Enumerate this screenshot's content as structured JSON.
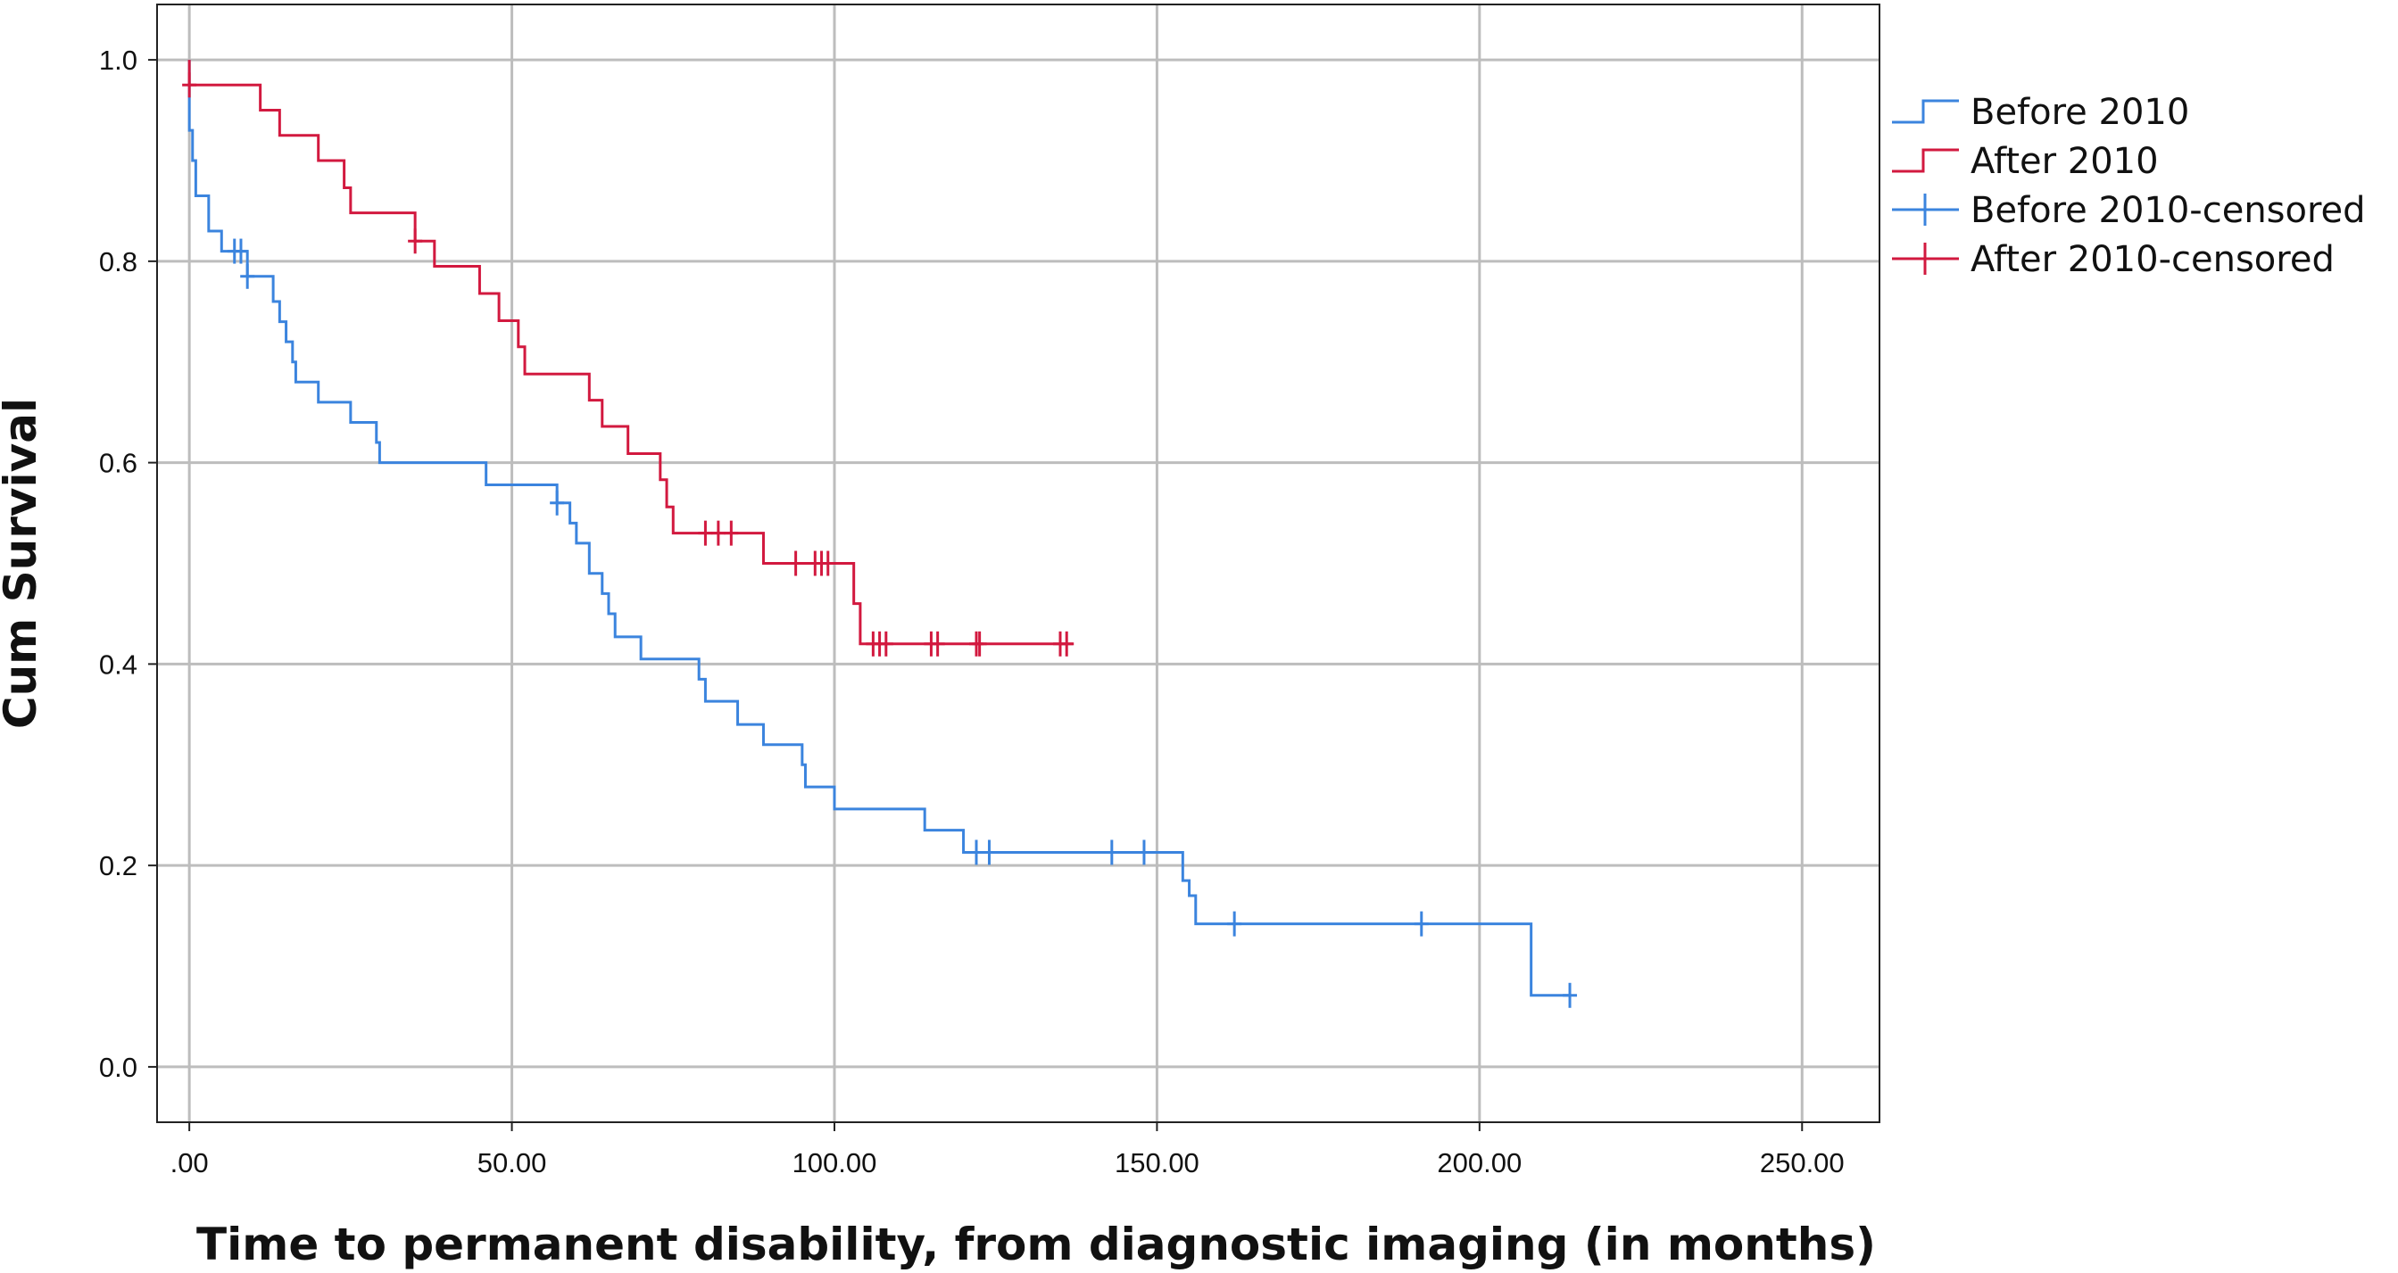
{
  "chart_data": {
    "type": "line",
    "subtype": "kaplan-meier step",
    "xlabel": "Time to permanent disability, from diagnostic imaging (in months)",
    "ylabel": "Cum Survival",
    "xlim": [
      -5,
      262
    ],
    "ylim": [
      -0.055,
      1.055
    ],
    "x_ticks": [
      0,
      50,
      100,
      150,
      200,
      250
    ],
    "x_tick_labels": [
      ".00",
      "50.00",
      "100.00",
      "150.00",
      "200.00",
      "250.00"
    ],
    "y_ticks": [
      0.0,
      0.2,
      0.4,
      0.6,
      0.8,
      1.0
    ],
    "y_tick_labels": [
      "0.0",
      "0.2",
      "0.4",
      "0.6",
      "0.8",
      "1.0"
    ],
    "grid": true,
    "legend_position": "top-right, outside plot",
    "legend": [
      "Before 2010",
      "After 2010",
      "Before 2010-censored",
      "After 2010-censored"
    ],
    "series": [
      {
        "name": "Before 2010",
        "color": "#3b84de",
        "steps": [
          [
            0,
            1.0
          ],
          [
            0,
            0.93
          ],
          [
            0.5,
            0.9
          ],
          [
            1,
            0.865
          ],
          [
            3,
            0.83
          ],
          [
            5,
            0.81
          ],
          [
            9,
            0.785
          ],
          [
            13,
            0.76
          ],
          [
            14,
            0.74
          ],
          [
            15,
            0.72
          ],
          [
            16,
            0.7
          ],
          [
            16.5,
            0.68
          ],
          [
            20,
            0.66
          ],
          [
            25,
            0.64
          ],
          [
            29,
            0.62
          ],
          [
            29.5,
            0.6
          ],
          [
            46,
            0.578
          ],
          [
            57,
            0.56
          ],
          [
            59,
            0.54
          ],
          [
            60,
            0.52
          ],
          [
            62,
            0.49
          ],
          [
            64,
            0.47
          ],
          [
            65,
            0.45
          ],
          [
            66,
            0.427
          ],
          [
            70,
            0.405
          ],
          [
            79,
            0.385
          ],
          [
            80,
            0.363
          ],
          [
            85,
            0.34
          ],
          [
            89,
            0.32
          ],
          [
            95,
            0.3
          ],
          [
            95.5,
            0.278
          ],
          [
            100,
            0.256
          ],
          [
            114,
            0.235
          ],
          [
            120,
            0.213
          ],
          [
            154,
            0.185
          ],
          [
            155,
            0.17
          ],
          [
            156,
            0.142
          ],
          [
            208,
            0.071
          ]
        ],
        "end_x": 214,
        "censored_x": [
          7,
          8,
          9,
          57,
          122,
          124,
          143,
          148,
          162,
          191,
          214
        ]
      },
      {
        "name": "After 2010",
        "color": "#d2193f",
        "steps": [
          [
            0,
            1.0
          ],
          [
            0,
            0.975
          ],
          [
            11,
            0.95
          ],
          [
            14,
            0.925
          ],
          [
            20,
            0.9
          ],
          [
            24,
            0.873
          ],
          [
            25,
            0.848
          ],
          [
            35,
            0.82
          ],
          [
            38,
            0.795
          ],
          [
            45,
            0.768
          ],
          [
            48,
            0.741
          ],
          [
            51,
            0.715
          ],
          [
            52,
            0.688
          ],
          [
            62,
            0.662
          ],
          [
            64,
            0.636
          ],
          [
            68,
            0.609
          ],
          [
            73,
            0.583
          ],
          [
            74,
            0.556
          ],
          [
            75,
            0.53
          ],
          [
            89,
            0.5
          ],
          [
            103,
            0.46
          ],
          [
            104,
            0.42
          ]
        ],
        "end_x": 137,
        "censored_x": [
          0,
          35,
          80,
          82,
          84,
          94,
          97,
          98,
          99,
          106,
          107,
          108,
          115,
          116,
          122,
          122.5,
          135,
          136
        ]
      }
    ]
  }
}
